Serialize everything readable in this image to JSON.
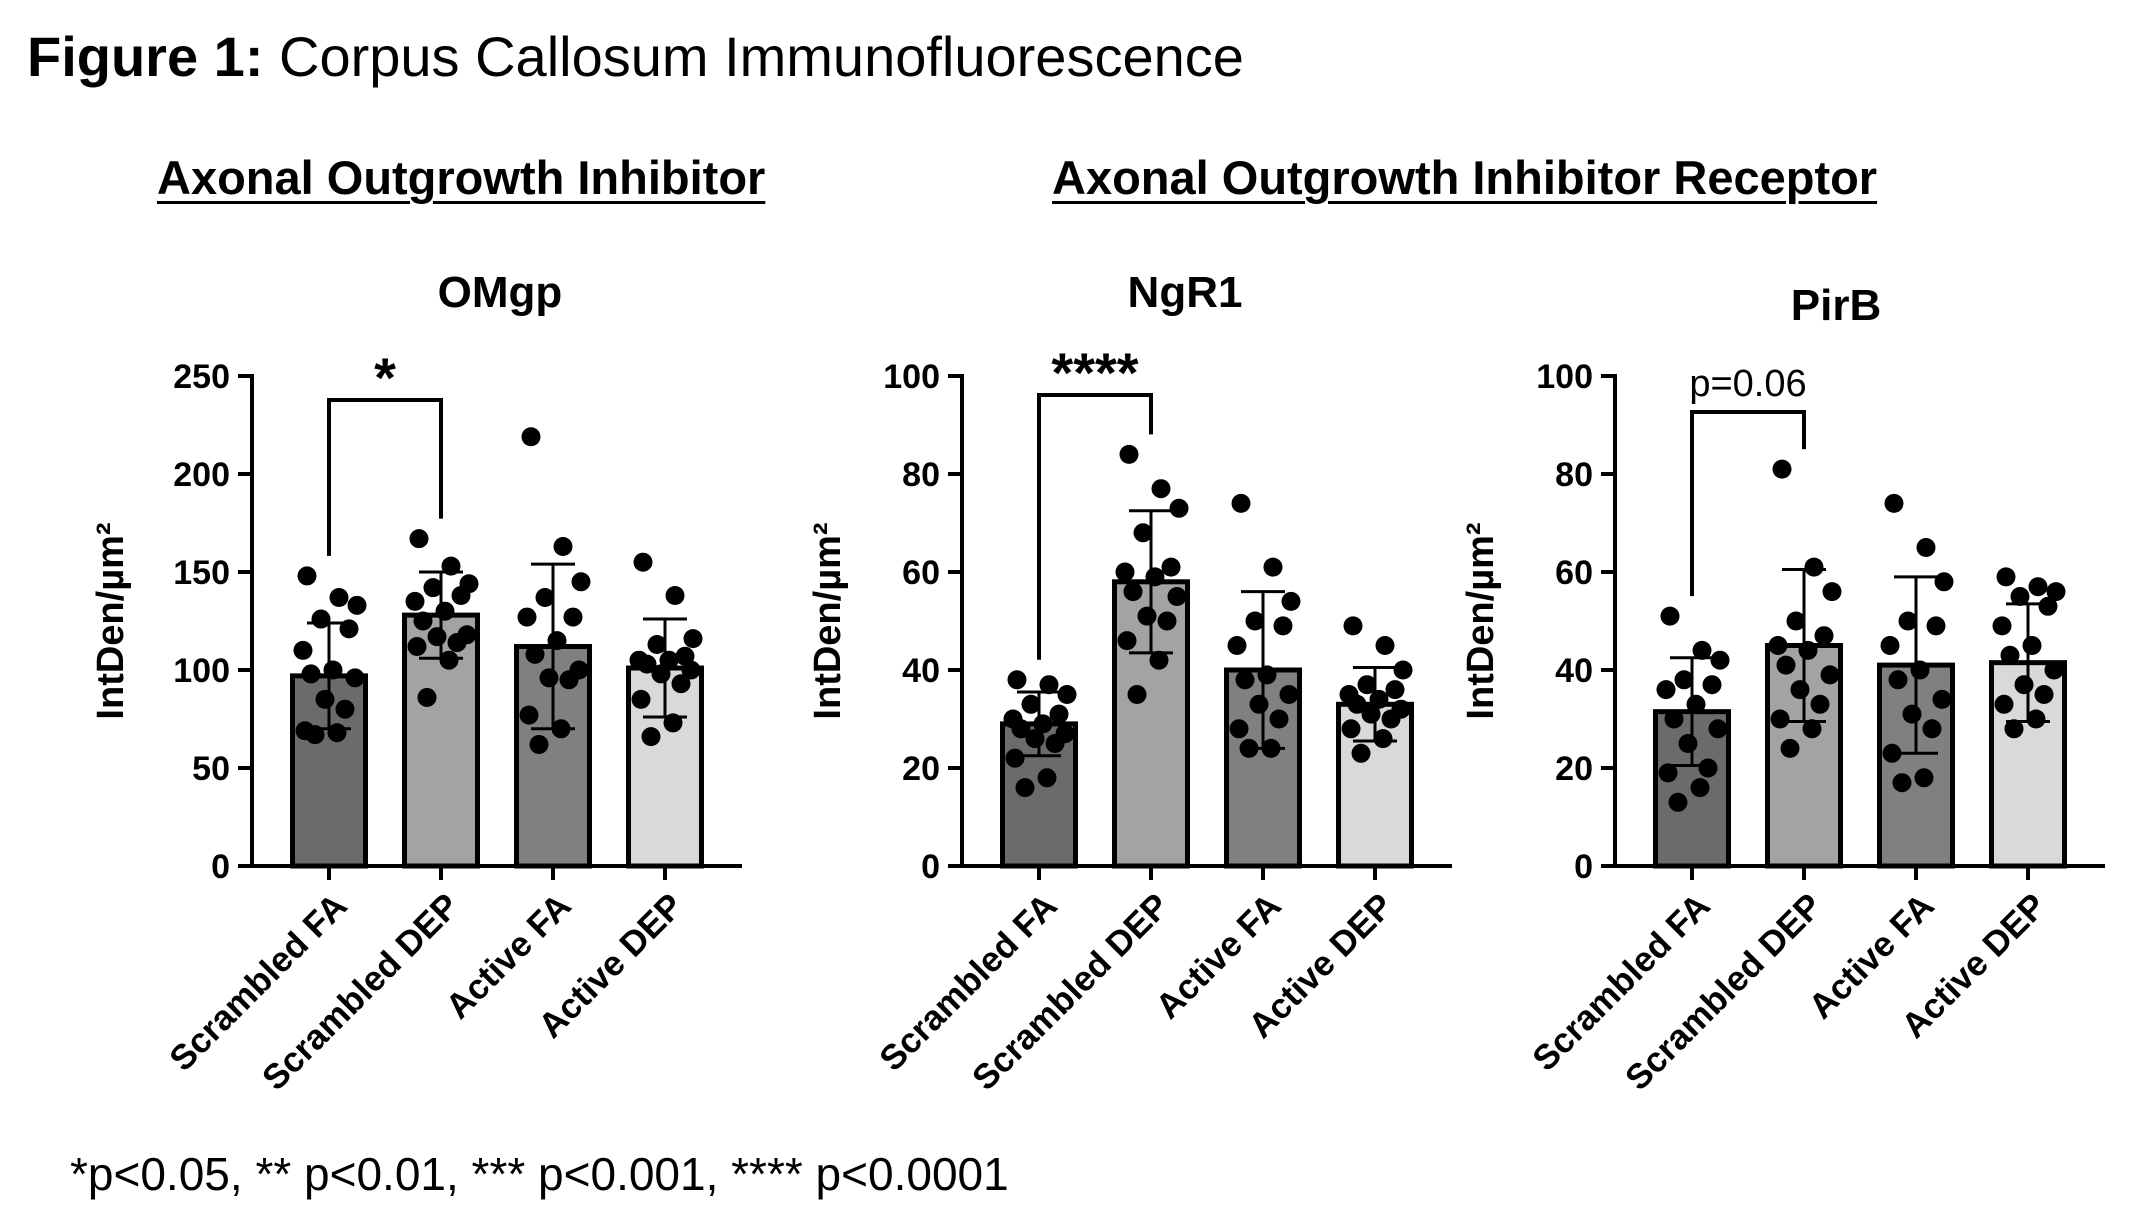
{
  "figure": {
    "title_bold": "Figure 1:",
    "title_rest": "Corpus Callosum Immunofluorescence",
    "section_headings": [
      "Axonal Outgrowth Inhibitor",
      "Axonal Outgrowth Inhibitor Receptor"
    ],
    "footnote": "*p<0.05, ** p<0.01, *** p<0.001, **** p<0.0001"
  },
  "chart_data": [
    {
      "type": "bar",
      "title": "OMgp",
      "xlabel": "",
      "ylabel": "IntDen/µm²",
      "ylim": [
        0,
        250
      ],
      "yticks": [
        0,
        50,
        100,
        150,
        200,
        250
      ],
      "categories": [
        "Scrambled FA",
        "Scrambled DEP",
        "Active FA",
        "Active DEP"
      ],
      "values": [
        97,
        128,
        112,
        101
      ],
      "sd": [
        27,
        22,
        42,
        25
      ],
      "bar_colors": [
        "#6b6b6b",
        "#a3a3a6",
        "#808080",
        "#d9d9d9"
      ],
      "points": [
        [
          148,
          137,
          133,
          126,
          121,
          110,
          100,
          98,
          96,
          85,
          80,
          69,
          68,
          67
        ],
        [
          167,
          153,
          144,
          142,
          138,
          135,
          130,
          125,
          118,
          117,
          114,
          112,
          105,
          86
        ],
        [
          219,
          163,
          145,
          137,
          127,
          127,
          115,
          108,
          100,
          96,
          95,
          77,
          70,
          62
        ],
        [
          155,
          138,
          116,
          113,
          107,
          105,
          105,
          103,
          100,
          98,
          93,
          85,
          73,
          66
        ]
      ],
      "significance": {
        "from": 0,
        "to": 1,
        "label": "*"
      }
    },
    {
      "type": "bar",
      "title": "NgR1",
      "xlabel": "",
      "ylabel": "IntDen/µm²",
      "ylim": [
        0,
        100
      ],
      "yticks": [
        0,
        20,
        40,
        60,
        80,
        100
      ],
      "categories": [
        "Scrambled FA",
        "Scrambled DEP",
        "Active FA",
        "Active DEP"
      ],
      "values": [
        29,
        58,
        40,
        33
      ],
      "sd": [
        6.5,
        14.5,
        16,
        7.5
      ],
      "bar_colors": [
        "#6b6b6b",
        "#a3a3a6",
        "#808080",
        "#d9d9d9"
      ],
      "points": [
        [
          38,
          37,
          35,
          33,
          31,
          30,
          29,
          28,
          27,
          26,
          25,
          22,
          18,
          16
        ],
        [
          84,
          77,
          73,
          68,
          61,
          60,
          59,
          56,
          55,
          51,
          50,
          46,
          42,
          35
        ],
        [
          74,
          61,
          54,
          50,
          49,
          45,
          39,
          38,
          35,
          33,
          30,
          28,
          24,
          24
        ],
        [
          49,
          45,
          40,
          37,
          36,
          35,
          34,
          33,
          32,
          31,
          30,
          28,
          26,
          23
        ]
      ],
      "significance": {
        "from": 0,
        "to": 1,
        "label": "****"
      }
    },
    {
      "type": "bar",
      "title": "PirB",
      "xlabel": "",
      "ylabel": "IntDen/µm²",
      "ylim": [
        0,
        100
      ],
      "yticks": [
        0,
        20,
        40,
        60,
        80,
        100
      ],
      "categories": [
        "Scrambled FA",
        "Scrambled DEP",
        "Active FA",
        "Active DEP"
      ],
      "values": [
        31.5,
        45,
        41,
        41.5
      ],
      "sd": [
        11,
        15.5,
        18,
        12
      ],
      "bar_colors": [
        "#6b6b6b",
        "#a3a3a6",
        "#808080",
        "#d9d9d9"
      ],
      "points": [
        [
          51,
          44,
          42,
          38,
          37,
          36,
          33,
          30,
          28,
          25,
          20,
          19,
          16,
          13
        ],
        [
          81,
          61,
          56,
          50,
          47,
          45,
          44,
          41,
          39,
          36,
          33,
          30,
          28,
          24
        ],
        [
          74,
          65,
          58,
          50,
          49,
          45,
          40,
          38,
          34,
          31,
          28,
          23,
          18,
          17
        ],
        [
          59,
          57,
          56,
          55,
          53,
          49,
          45,
          43,
          40,
          37,
          35,
          33,
          30,
          28
        ]
      ],
      "significance": {
        "from": 0,
        "to": 1,
        "label": "p=0.06"
      }
    }
  ]
}
